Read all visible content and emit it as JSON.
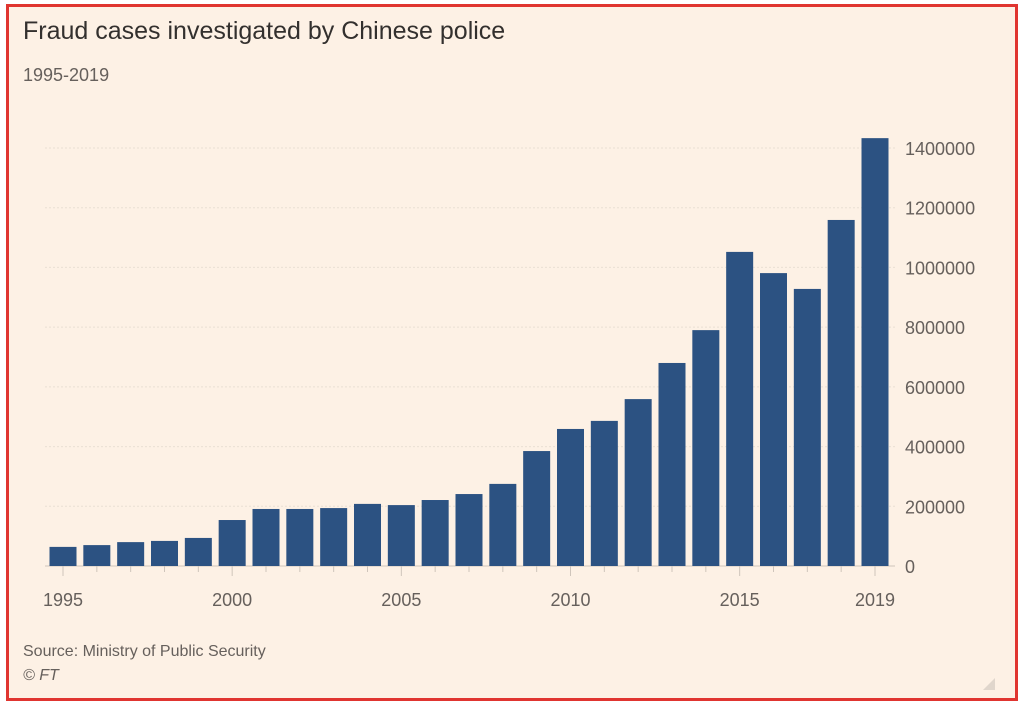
{
  "chart_data": {
    "type": "bar",
    "title": "Fraud cases investigated by Chinese police",
    "subtitle": "1995-2019",
    "categories": [
      1995,
      1996,
      1997,
      1998,
      1999,
      2000,
      2001,
      2002,
      2003,
      2004,
      2005,
      2006,
      2007,
      2008,
      2009,
      2010,
      2011,
      2012,
      2013,
      2014,
      2015,
      2016,
      2017,
      2018,
      2019
    ],
    "values": [
      64000,
      70000,
      80000,
      84000,
      94000,
      154000,
      191000,
      191000,
      194000,
      208000,
      204000,
      221000,
      241000,
      275000,
      385000,
      459000,
      486000,
      559000,
      680000,
      790000,
      1052000,
      981000,
      928000,
      1159000,
      1433000
    ],
    "xticks": [
      "1995",
      "2000",
      "2005",
      "2010",
      "2015",
      "2019"
    ],
    "yticks": [
      "0",
      "200000",
      "400000",
      "600000",
      "800000",
      "1000000",
      "1200000",
      "1400000"
    ],
    "ylim": [
      0,
      1400000
    ],
    "xlabel": "",
    "ylabel": "",
    "grid": true,
    "yaxis_position": "right",
    "bar_color": "#2c5282",
    "source": "Source: Ministry of Public Security",
    "credit": "© FT"
  }
}
